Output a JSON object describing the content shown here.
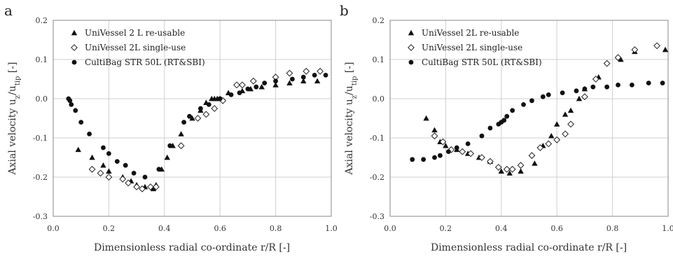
{
  "chart_data": [
    {
      "panel": "a",
      "type": "scatter",
      "xlabel": "Dimensionless radial co-ordinate r/R [-]",
      "ylabel_main": "Axial velocity u",
      "ylabel_sub1": "z",
      "ylabel_mid": "/u",
      "ylabel_sub2": "tip",
      "ylabel_tail": " [-]",
      "xlim": [
        0,
        1
      ],
      "ylim": [
        -0.3,
        0.2
      ],
      "xticks": [
        "0.0",
        "0.2",
        "0.4",
        "0.6",
        "0.8",
        "1.0"
      ],
      "yticks": [
        "-0.3",
        "-0.2",
        "-0.1",
        "0.0",
        "0.1",
        "0.2"
      ],
      "grid": true,
      "legend_position": "top-left",
      "series": [
        {
          "name": "UniVessel 2 L re-usable",
          "marker": "triangle",
          "x": [
            0.09,
            0.14,
            0.18,
            0.2,
            0.25,
            0.28,
            0.3,
            0.33,
            0.36,
            0.37,
            0.39,
            0.41,
            0.43,
            0.46,
            0.5,
            0.53,
            0.55,
            0.57,
            0.58,
            0.59,
            0.6,
            0.63,
            0.68,
            0.71,
            0.75,
            0.8,
            0.85,
            0.9,
            0.95
          ],
          "y": [
            -0.13,
            -0.15,
            -0.17,
            -0.185,
            -0.2,
            -0.21,
            -0.22,
            -0.225,
            -0.23,
            -0.22,
            -0.18,
            -0.15,
            -0.12,
            -0.09,
            -0.05,
            -0.03,
            -0.01,
            0.0,
            0.0,
            0.0,
            0.0,
            0.015,
            0.02,
            0.025,
            0.03,
            0.035,
            0.04,
            0.045,
            0.045
          ]
        },
        {
          "name": "UniVessel 2L single-use",
          "marker": "diamond",
          "x": [
            0.14,
            0.17,
            0.2,
            0.25,
            0.27,
            0.3,
            0.32,
            0.35,
            0.37,
            0.46,
            0.52,
            0.55,
            0.58,
            0.61,
            0.66,
            0.68,
            0.72,
            0.8,
            0.85,
            0.91,
            0.96
          ],
          "y": [
            -0.18,
            -0.19,
            -0.2,
            -0.205,
            -0.215,
            -0.225,
            -0.23,
            -0.225,
            -0.225,
            -0.12,
            -0.05,
            -0.04,
            -0.025,
            -0.005,
            0.035,
            0.035,
            0.045,
            0.055,
            0.065,
            0.07,
            0.07
          ]
        },
        {
          "name": "CultiBag STR 50L (RT&SBI)",
          "marker": "circle",
          "x": [
            0.055,
            0.06,
            0.065,
            0.08,
            0.1,
            0.13,
            0.18,
            0.2,
            0.23,
            0.26,
            0.29,
            0.33,
            0.38,
            0.42,
            0.47,
            0.49,
            0.53,
            0.56,
            0.6,
            0.64,
            0.67,
            0.7,
            0.73,
            0.76,
            0.8,
            0.86,
            0.9,
            0.94,
            0.98
          ],
          "y": [
            0.0,
            -0.005,
            -0.015,
            -0.03,
            -0.06,
            -0.09,
            -0.125,
            -0.14,
            -0.16,
            -0.17,
            -0.19,
            -0.2,
            -0.18,
            -0.12,
            -0.06,
            -0.045,
            -0.025,
            -0.015,
            0.0,
            0.01,
            0.015,
            0.025,
            0.03,
            0.04,
            0.045,
            0.05,
            0.055,
            0.06,
            0.06
          ]
        }
      ]
    },
    {
      "panel": "b",
      "type": "scatter",
      "xlabel": "Dimensionless radial co-ordinate r/R [-]",
      "ylabel_main": "Axial velocity u",
      "ylabel_sub1": "z",
      "ylabel_mid": "/u",
      "ylabel_sub2": "tip",
      "ylabel_tail": " [-]",
      "xlim": [
        0,
        1
      ],
      "ylim": [
        -0.3,
        0.2
      ],
      "xticks": [
        "0.0",
        "0.2",
        "0.4",
        "0.6",
        "0.8",
        "1.0"
      ],
      "yticks": [
        "-0.3",
        "-0.2",
        "-0.1",
        "0.0",
        "0.1",
        "0.2"
      ],
      "grid": true,
      "legend_position": "top-left",
      "series": [
        {
          "name": "UniVessel 2L re-usable",
          "marker": "triangle",
          "x": [
            0.13,
            0.16,
            0.18,
            0.2,
            0.24,
            0.28,
            0.32,
            0.36,
            0.4,
            0.43,
            0.47,
            0.52,
            0.55,
            0.58,
            0.6,
            0.63,
            0.65,
            0.68,
            0.7,
            0.75,
            0.83,
            0.88,
            0.99
          ],
          "y": [
            -0.05,
            -0.08,
            -0.11,
            -0.12,
            -0.13,
            -0.14,
            -0.15,
            -0.16,
            -0.185,
            -0.19,
            -0.185,
            -0.165,
            -0.12,
            -0.095,
            -0.065,
            -0.04,
            -0.03,
            0.0,
            0.025,
            0.055,
            0.1,
            0.12,
            0.125
          ]
        },
        {
          "name": "UniVessel 2L single-use",
          "marker": "diamond",
          "x": [
            0.16,
            0.19,
            0.22,
            0.26,
            0.29,
            0.33,
            0.36,
            0.39,
            0.42,
            0.44,
            0.47,
            0.51,
            0.54,
            0.57,
            0.6,
            0.63,
            0.65,
            0.7,
            0.74,
            0.78,
            0.82,
            0.88,
            0.96
          ],
          "y": [
            -0.095,
            -0.11,
            -0.13,
            -0.135,
            -0.14,
            -0.15,
            -0.16,
            -0.175,
            -0.18,
            -0.18,
            -0.17,
            -0.145,
            -0.125,
            -0.115,
            -0.105,
            -0.09,
            -0.065,
            0.005,
            0.05,
            0.09,
            0.105,
            0.125,
            0.135
          ]
        },
        {
          "name": "CultiBag STR 50L (RT&SBI)",
          "marker": "circle",
          "x": [
            0.08,
            0.12,
            0.16,
            0.18,
            0.21,
            0.24,
            0.28,
            0.33,
            0.36,
            0.39,
            0.4,
            0.41,
            0.42,
            0.44,
            0.48,
            0.51,
            0.55,
            0.57,
            0.62,
            0.67,
            0.7,
            0.73,
            0.78,
            0.82,
            0.87,
            0.93,
            0.98
          ],
          "y": [
            -0.155,
            -0.155,
            -0.15,
            -0.145,
            -0.135,
            -0.125,
            -0.115,
            -0.095,
            -0.075,
            -0.065,
            -0.06,
            -0.055,
            -0.045,
            -0.03,
            -0.015,
            -0.005,
            0.005,
            0.01,
            0.015,
            0.02,
            0.025,
            0.03,
            0.03,
            0.035,
            0.035,
            0.04,
            0.04
          ]
        }
      ]
    }
  ]
}
